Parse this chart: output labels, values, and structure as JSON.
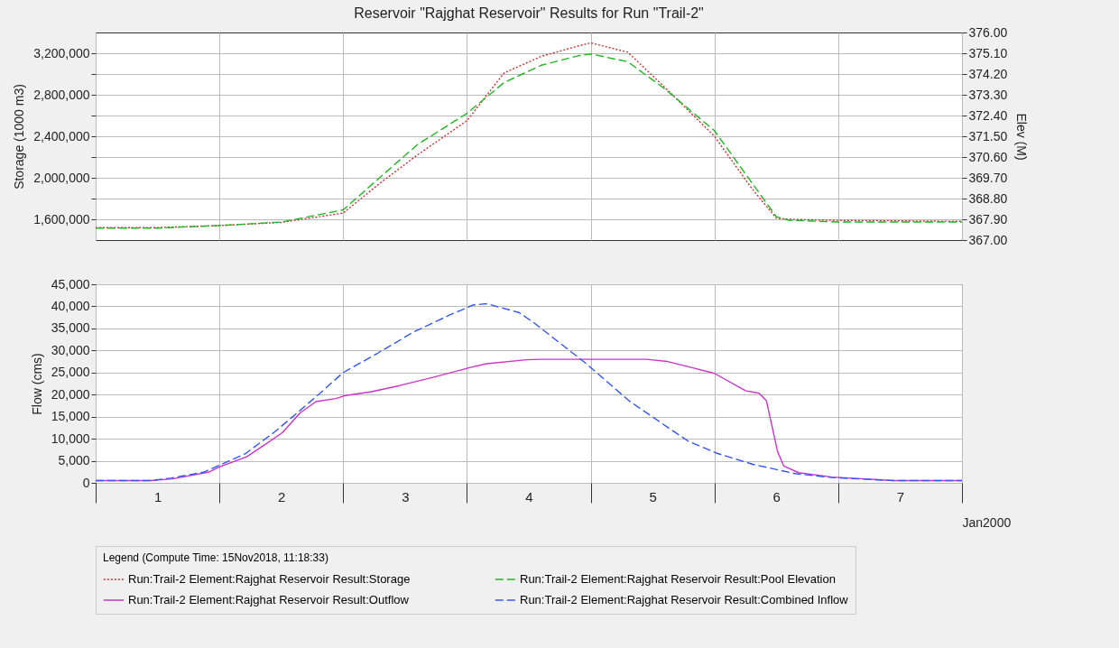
{
  "chart_data": [
    {
      "type": "line",
      "title": "Reservoir \"Rajghat Reservoir\" Results for Run \"Trail-2\"",
      "ylabel": "Storage (1000 m3)",
      "y2label": "Elev (M)",
      "x": [
        0,
        0.5,
        1,
        1.5,
        2,
        2.3,
        2.6,
        3,
        3.3,
        3.6,
        3.9,
        4,
        4.3,
        4.6,
        5,
        5.3,
        5.5,
        5.6,
        6,
        7
      ],
      "series": [
        {
          "name": "Run:Trail-2 Element:Rajghat Reservoir Result:Storage",
          "color": "#cc3333",
          "line_style": "dotted",
          "values": [
            1520000,
            1520000,
            1540000,
            1570000,
            1660000,
            1950000,
            2220000,
            2550000,
            3010000,
            3170000,
            3270000,
            3300000,
            3210000,
            2870000,
            2400000,
            1900000,
            1610000,
            1600000,
            1590000,
            1580000
          ]
        },
        {
          "name": "Run:Trail-2 Element:Rajghat Reservoir Result:Pool Elevation",
          "color": "#22b522",
          "line_style": "dashed",
          "axis": "y2",
          "values": [
            367.52,
            367.52,
            367.63,
            367.78,
            368.31,
            369.73,
            371.14,
            372.49,
            373.83,
            374.58,
            374.99,
            375.07,
            374.73,
            373.55,
            371.74,
            369.5,
            368.01,
            367.86,
            367.78,
            367.78
          ]
        }
      ],
      "xlim": [
        0,
        7
      ],
      "xticks": [
        {
          "value": 0,
          "label": null
        },
        {
          "value": 1,
          "label": null
        },
        {
          "value": 2,
          "label": null
        },
        {
          "value": 3,
          "label": null
        },
        {
          "value": 4,
          "label": null
        },
        {
          "value": 5,
          "label": null
        },
        {
          "value": 6,
          "label": null
        },
        {
          "value": 7,
          "label": null
        }
      ],
      "ylim": [
        1400000,
        3400000
      ],
      "yticks": [
        {
          "value": 1600000,
          "label": "1,600,000"
        },
        {
          "value": 1800000,
          "label": null
        },
        {
          "value": 2000000,
          "label": "2,000,000"
        },
        {
          "value": 2200000,
          "label": null
        },
        {
          "value": 2400000,
          "label": "2,400,000"
        },
        {
          "value": 2600000,
          "label": null
        },
        {
          "value": 2800000,
          "label": "2,800,000"
        },
        {
          "value": 3000000,
          "label": null
        },
        {
          "value": 3200000,
          "label": "3,200,000"
        }
      ],
      "y2lim": [
        367,
        376
      ],
      "y2ticks": [
        {
          "value": 367,
          "label": "367.00"
        },
        {
          "value": 367.9,
          "label": "367.90"
        },
        {
          "value": 368.8,
          "label": "368.80"
        },
        {
          "value": 369.7,
          "label": "369.70"
        },
        {
          "value": 370.6,
          "label": "370.60"
        },
        {
          "value": 371.5,
          "label": "371.50"
        },
        {
          "value": 372.4,
          "label": "372.40"
        },
        {
          "value": 373.3,
          "label": "373.30"
        },
        {
          "value": 374.2,
          "label": "374.20"
        },
        {
          "value": 375.1,
          "label": "375.10"
        },
        {
          "value": 376,
          "label": "376.00"
        }
      ],
      "tick_labels": "y",
      "grid": true,
      "legend": "bottom"
    },
    {
      "type": "line",
      "ylabel": "Flow (cms)",
      "xlabel": "Jan2000",
      "legend_title": "Legend (Compute Time: 15Nov2018, 11:18:33)",
      "series": [
        {
          "name": "Run:Trail-2 Element:Rajghat Reservoir Result:Outflow",
          "color": "#cc33cc",
          "line_style": "solid",
          "x": [
            0,
            0.44,
            0.62,
            0.91,
            1,
            1.22,
            1.36,
            1.51,
            1.65,
            1.78,
            1.94,
            2.02,
            2.22,
            2.45,
            2.74,
            3.02,
            3.16,
            3.48,
            3.6,
            4.45,
            4.62,
            4.79,
            5,
            5.25,
            5.36,
            5.42,
            5.51,
            5.56,
            5.68,
            5.95,
            6.45,
            7
          ],
          "values": [
            500,
            500,
            900,
            2400,
            3600,
            5900,
            8500,
            11400,
            15800,
            18400,
            19100,
            19800,
            20600,
            22000,
            24000,
            26100,
            27000,
            27900,
            28000,
            28000,
            27500,
            26300,
            24800,
            20900,
            20300,
            18600,
            7100,
            3800,
            2300,
            1300,
            500,
            500
          ]
        },
        {
          "name": "Run:Trail-2 Element:Rajghat Reservoir Result:Combined Inflow",
          "color": "#3355ff",
          "line_style": "dashed",
          "x": [
            0,
            0.44,
            0.61,
            0.87,
            1,
            1.21,
            1.44,
            1.58,
            1.78,
            2,
            2.28,
            2.57,
            2.85,
            3.05,
            3.16,
            3.42,
            3.54,
            3.96,
            4.31,
            4.59,
            4.79,
            5.02,
            5.31,
            5.65,
            5.95,
            6.45,
            7
          ],
          "values": [
            500,
            500,
            1100,
            2400,
            4000,
            6600,
            11400,
            14700,
            19500,
            25000,
            29400,
            34200,
            37900,
            40300,
            40600,
            38600,
            36300,
            27100,
            18600,
            13200,
            9400,
            6700,
            4200,
            2100,
            1200,
            500,
            500
          ]
        }
      ],
      "xlim": [
        0,
        7
      ],
      "xticks": [
        {
          "value": 0,
          "label": null
        },
        {
          "value": 0.5,
          "label": "1"
        },
        {
          "value": 1,
          "label": null
        },
        {
          "value": 1.5,
          "label": "2"
        },
        {
          "value": 2,
          "label": null
        },
        {
          "value": 2.5,
          "label": "3"
        },
        {
          "value": 3,
          "label": null
        },
        {
          "value": 3.5,
          "label": "4"
        },
        {
          "value": 4,
          "label": null
        },
        {
          "value": 4.5,
          "label": "5"
        },
        {
          "value": 5,
          "label": null
        },
        {
          "value": 5.5,
          "label": "6"
        },
        {
          "value": 6,
          "label": null
        },
        {
          "value": 6.5,
          "label": "7"
        },
        {
          "value": 7,
          "label": null
        }
      ],
      "ylim": [
        0,
        45000
      ],
      "yticks": [
        0,
        {
          "value": 5000,
          "label": "5,000"
        },
        {
          "value": 10000,
          "label": "10,000"
        },
        {
          "value": 15000,
          "label": "15,000"
        },
        {
          "value": 20000,
          "label": "20,000"
        },
        {
          "value": 25000,
          "label": "25,000"
        },
        {
          "value": 30000,
          "label": "30,000"
        },
        {
          "value": 35000,
          "label": "35,000"
        },
        {
          "value": 40000,
          "label": "40,000"
        },
        {
          "value": 45000,
          "label": "45,000"
        }
      ],
      "grid": true,
      "legend": "bottom"
    }
  ]
}
